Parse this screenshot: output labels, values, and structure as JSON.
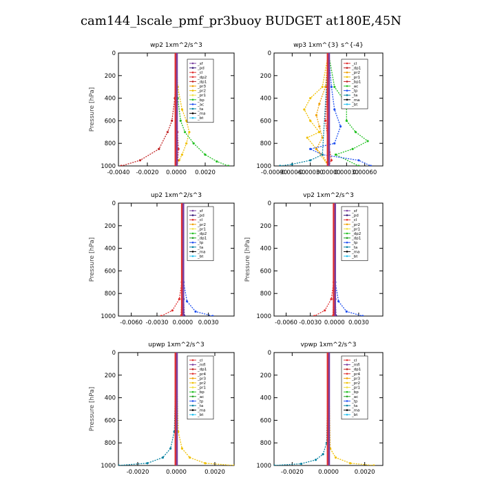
{
  "title": "cam144_lscale_pmf_pr3buoy  BUDGET at180E,45N",
  "chart_data": [
    {
      "type": "line",
      "title": "wp2  1xm^2/s^3",
      "ylabel": "Pressure [hPa]",
      "ylim": [
        1000,
        0
      ],
      "xlim": [
        -0.004,
        0.004
      ],
      "xticks": [
        "-0.0040",
        "-0.0020",
        "0.0000",
        "0.0020"
      ],
      "yticks": [
        "0",
        "200",
        "400",
        "600",
        "800",
        "1000"
      ],
      "legend": [
        "_sf",
        "_pd",
        "_cl",
        "_dp2",
        "_dp1",
        "_pr3",
        "_pr2",
        "_pr1",
        "_bp",
        "_ac",
        "_ta",
        "_ma",
        "_bt"
      ],
      "legend_colors": [
        "#7a3fa0",
        "#3a1a7a",
        "#e03030",
        "#e03030",
        "#c02020",
        "#f0a000",
        "#f0c000",
        "#f0e040",
        "#20c020",
        "#2050f0",
        "#0080a0",
        "#000000",
        "#20c0f0"
      ],
      "series": [
        {
          "name": "_pr1",
          "x": [
            0,
            0.0001,
            0.0004,
            0.0007,
            0.0009,
            0.0007,
            0.0004,
            0.0002,
            0
          ],
          "y": [
            0,
            300,
            500,
            600,
            700,
            800,
            900,
            950,
            1000
          ]
        },
        {
          "name": "_bp",
          "x": [
            0,
            0.0001,
            0.0003,
            0.0006,
            0.0012,
            0.002,
            0.0028,
            0.0036
          ],
          "y": [
            0,
            400,
            600,
            700,
            800,
            900,
            960,
            1000
          ]
        },
        {
          "name": "_dp1",
          "x": [
            0,
            -0.0001,
            -0.0003,
            -0.0006,
            -0.0012,
            -0.0025,
            -0.0038
          ],
          "y": [
            0,
            400,
            600,
            700,
            850,
            950,
            1000
          ]
        },
        {
          "name": "_cl",
          "x": [
            0,
            2e-05,
            8e-05,
            0.00015,
            0.0001,
            0
          ],
          "y": [
            0,
            400,
            700,
            850,
            950,
            1000
          ]
        },
        {
          "name": "_sf",
          "x": [
            0,
            0,
            0,
            0,
            0
          ],
          "y": [
            0,
            250,
            500,
            750,
            1000
          ]
        }
      ]
    },
    {
      "type": "line",
      "title": "wp3  1xm^{3} s^{-4}",
      "ylabel": "",
      "ylim": [
        1000,
        0
      ],
      "xlim": [
        -0.0009,
        0.0009
      ],
      "xticks": [
        "-0.00090",
        "-0.00060",
        "-0.00030",
        "0.00000",
        "0.00030",
        "0.00060"
      ],
      "yticks": [
        "0",
        "200",
        "400",
        "600",
        "800",
        "1000"
      ],
      "legend": [
        "_cl",
        "_dp1",
        "_pr2",
        "_pr1",
        "_bp1",
        "_ac",
        "_tp",
        "_ta",
        "_ma",
        "_bt"
      ],
      "legend_colors": [
        "#e03030",
        "#c02020",
        "#f0a000",
        "#f0c000",
        "#c02020",
        "#20c020",
        "#2050f0",
        "#0080a0",
        "#000000",
        "#20c0f0"
      ],
      "series": [
        {
          "name": "_pr1",
          "x": [
            0,
            -0.0001,
            -0.0003,
            -0.0004,
            -0.0003,
            -0.00015,
            -0.00035,
            -0.0002,
            0
          ],
          "y": [
            0,
            300,
            400,
            500,
            600,
            700,
            750,
            850,
            1000
          ]
        },
        {
          "name": "_pr2",
          "x": [
            0,
            -5e-05,
            -0.00015,
            -0.0002,
            -0.00015,
            -0.0001,
            -0.0002,
            -0.0001,
            0
          ],
          "y": [
            0,
            300,
            450,
            550,
            650,
            750,
            850,
            900,
            1000
          ]
        },
        {
          "name": "_ac",
          "x": [
            0,
            0.0001,
            0.0003,
            0.0003,
            0.00045,
            0.00065,
            0.0004,
            0.00012,
            0.0005
          ],
          "y": [
            0,
            300,
            450,
            600,
            700,
            780,
            850,
            900,
            1000
          ]
        },
        {
          "name": "_tp",
          "x": [
            0,
            5e-05,
            0.0001,
            0.0002,
            0.0001,
            -0.0003,
            -0.0001,
            0.0005,
            0.0007
          ],
          "y": [
            0,
            300,
            500,
            650,
            800,
            850,
            900,
            950,
            1000
          ]
        },
        {
          "name": "_ta",
          "x": [
            0,
            -0.0001,
            -0.0003,
            -0.0006,
            -0.0008
          ],
          "y": [
            0,
            900,
            950,
            985,
            1000
          ]
        },
        {
          "name": "_cl",
          "x": [
            0,
            -2e-05,
            -5e-05,
            0,
            5e-05,
            0
          ],
          "y": [
            0,
            300,
            600,
            800,
            950,
            1000
          ]
        }
      ]
    },
    {
      "type": "line",
      "title": "up2  1xm^2/s^3",
      "ylabel": "Pressure [hPa]",
      "ylim": [
        1000,
        0
      ],
      "xlim": [
        -0.0075,
        0.006
      ],
      "xticks": [
        "-0.0060",
        "-0.0030",
        "0.0000",
        "0.0030"
      ],
      "yticks": [
        "0",
        "200",
        "400",
        "600",
        "800",
        "1000"
      ],
      "legend": [
        "_sf",
        "_pd",
        "_cl",
        "_pr2",
        "_pr1",
        "_dp2",
        "_dp1",
        "_tp",
        "_ta",
        "_ma",
        "_bt"
      ],
      "legend_colors": [
        "#7a3fa0",
        "#3a1a7a",
        "#e03030",
        "#f0a000",
        "#f0e040",
        "#20c020",
        "#20a020",
        "#2050f0",
        "#0080a0",
        "#000000",
        "#20c0f0"
      ],
      "series": [
        {
          "name": "_dp2",
          "x": [
            0,
            -0.0001,
            -0.0004,
            -0.0012,
            -0.0025
          ],
          "y": [
            0,
            700,
            850,
            950,
            1000
          ]
        },
        {
          "name": "_tp",
          "x": [
            0,
            0.0001,
            0.0005,
            0.0015,
            0.0035
          ],
          "y": [
            0,
            700,
            870,
            960,
            1000
          ]
        },
        {
          "name": "_pd",
          "x": [
            0,
            5e-05,
            0.0001,
            0.0002
          ],
          "y": [
            0,
            500,
            850,
            1000
          ]
        },
        {
          "name": "_cl",
          "x": [
            0,
            -5e-05,
            -0.0001,
            -0.0002
          ],
          "y": [
            0,
            500,
            850,
            1000
          ]
        }
      ]
    },
    {
      "type": "line",
      "title": "vp2  1xm^2/s^3",
      "ylabel": "Pressure [hPa]",
      "ylim": [
        1000,
        0
      ],
      "xlim": [
        -0.0075,
        0.006
      ],
      "xticks": [
        "-0.0060",
        "-0.0030",
        "0.0000",
        "0.0030"
      ],
      "yticks": [
        "0",
        "200",
        "400",
        "600",
        "800",
        "1000"
      ],
      "legend": [
        "_sf",
        "_pd",
        "_cl",
        "_pr2",
        "_pr1",
        "_dp2",
        "_dp1",
        "_tp",
        "_ta",
        "_ma",
        "_bt"
      ],
      "legend_colors": [
        "#7a3fa0",
        "#3a1a7a",
        "#e03030",
        "#f0a000",
        "#f0e040",
        "#20c020",
        "#20a020",
        "#2050f0",
        "#0080a0",
        "#000000",
        "#20c0f0"
      ],
      "series": [
        {
          "name": "_dp2",
          "x": [
            0,
            -0.0001,
            -0.0004,
            -0.0012,
            -0.0025
          ],
          "y": [
            0,
            700,
            850,
            950,
            1000
          ]
        },
        {
          "name": "_tp",
          "x": [
            0,
            0.0001,
            0.0005,
            0.0015,
            0.0035
          ],
          "y": [
            0,
            700,
            870,
            960,
            1000
          ]
        },
        {
          "name": "_pd",
          "x": [
            0,
            5e-05,
            0.0001,
            0.0002
          ],
          "y": [
            0,
            500,
            850,
            1000
          ]
        },
        {
          "name": "_cl",
          "x": [
            0,
            -5e-05,
            -0.0001,
            -0.0002
          ],
          "y": [
            0,
            500,
            850,
            1000
          ]
        }
      ]
    },
    {
      "type": "line",
      "title": "upwp  1xm^2/s^3",
      "ylabel": "Pressure [hPa]",
      "ylim": [
        1000,
        0
      ],
      "xlim": [
        -0.003,
        0.003
      ],
      "xticks": [
        "-0.0020",
        "0.0000",
        "0.0020"
      ],
      "yticks": [
        "0",
        "200",
        "400",
        "600",
        "800",
        "1000"
      ],
      "legend": [
        "_cl",
        "_mfl",
        "_dp1",
        "_pr4",
        "_pr3",
        "_pr2",
        "_pr1",
        "_bp",
        "_ac",
        "_tp",
        "_ta",
        "_ma",
        "_bt"
      ],
      "legend_colors": [
        "#e03030",
        "#7a3fa0",
        "#c02020",
        "#e03030",
        "#f0a000",
        "#f0c000",
        "#f0e040",
        "#20c020",
        "#20a020",
        "#2050f0",
        "#0080a0",
        "#000000",
        "#20c0f0"
      ],
      "series": [
        {
          "name": "_ta",
          "x": [
            0,
            -0.0001,
            -0.0003,
            -0.0007,
            -0.0015,
            -0.003
          ],
          "y": [
            0,
            700,
            850,
            930,
            980,
            1000
          ]
        },
        {
          "name": "_pr1",
          "x": [
            0,
            0.0001,
            0.0003,
            0.0007,
            0.0015,
            0.003
          ],
          "y": [
            0,
            700,
            850,
            930,
            980,
            1000
          ]
        },
        {
          "name": "_mfl",
          "x": [
            0,
            0,
            0,
            0
          ],
          "y": [
            0,
            400,
            800,
            1000
          ]
        }
      ]
    },
    {
      "type": "line",
      "title": "vpwp  1xm^2/s^3",
      "ylabel": "",
      "ylim": [
        1000,
        0
      ],
      "xlim": [
        -0.003,
        0.003
      ],
      "xticks": [
        "-0.0020",
        "0.0000",
        "0.0020"
      ],
      "yticks": [
        "0",
        "200",
        "400",
        "600",
        "800",
        "1000"
      ],
      "legend": [
        "_cl",
        "_mfl",
        "_dp1",
        "_pr4",
        "_pr3",
        "_pr2",
        "_pr1",
        "_bp",
        "_ac",
        "_tp",
        "_ta",
        "_ma",
        "_bt"
      ],
      "legend_colors": [
        "#e03030",
        "#7a3fa0",
        "#c02020",
        "#e03030",
        "#f0a000",
        "#f0c000",
        "#f0e040",
        "#20c020",
        "#20a020",
        "#2050f0",
        "#0080a0",
        "#000000",
        "#20c0f0"
      ],
      "series": [
        {
          "name": "_ta",
          "x": [
            0,
            -0.0001,
            -0.0003,
            -0.0007,
            -0.0015,
            -0.003
          ],
          "y": [
            0,
            800,
            900,
            950,
            985,
            1000
          ]
        },
        {
          "name": "_pr1",
          "x": [
            0,
            0.0001,
            0.0004,
            0.0012,
            0.0025
          ],
          "y": [
            0,
            850,
            930,
            980,
            1000
          ]
        },
        {
          "name": "_mfl",
          "x": [
            0,
            0,
            0,
            0
          ],
          "y": [
            0,
            400,
            800,
            1000
          ]
        }
      ]
    }
  ]
}
